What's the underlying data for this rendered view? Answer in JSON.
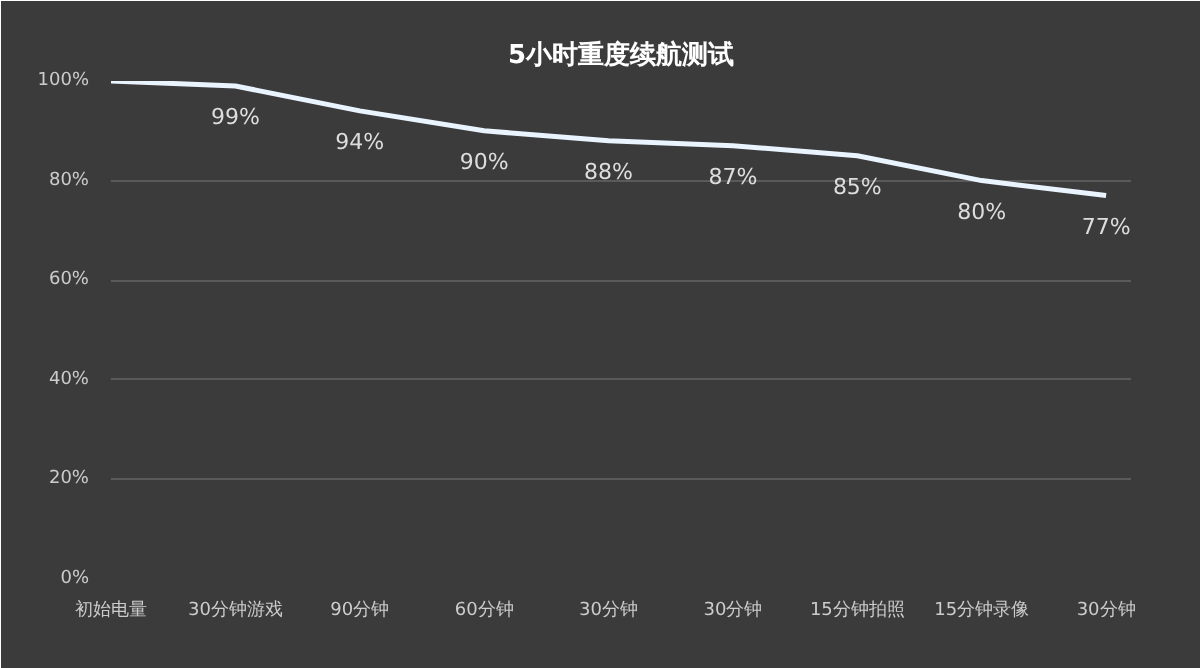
{
  "chart_data": {
    "type": "line",
    "title": "5小时重度续航测试",
    "categories": [
      "初始电量",
      "30分钟游戏",
      "90分钟",
      "60分钟",
      "30分钟",
      "30分钟",
      "15分钟拍照",
      "15分钟录像",
      "30分钟"
    ],
    "series": [
      {
        "color": "#eaf4ff",
        "values": [
          100,
          99,
          94,
          90,
          88,
          87,
          85,
          80,
          77
        ],
        "value_labels": [
          null,
          "99%",
          "94%",
          "90%",
          "88%",
          "87%",
          "85%",
          "80%",
          "77%"
        ]
      }
    ],
    "ylim": [
      0,
      100
    ],
    "yticks": [
      {
        "value": 0,
        "label": "0%"
      },
      {
        "value": 20,
        "label": "20%"
      },
      {
        "value": 40,
        "label": "40%"
      },
      {
        "value": 60,
        "label": "60%"
      },
      {
        "value": 80,
        "label": "80%"
      },
      {
        "value": 100,
        "label": "100%"
      }
    ],
    "grid": "y",
    "marker": "none",
    "line_style": "solid"
  }
}
